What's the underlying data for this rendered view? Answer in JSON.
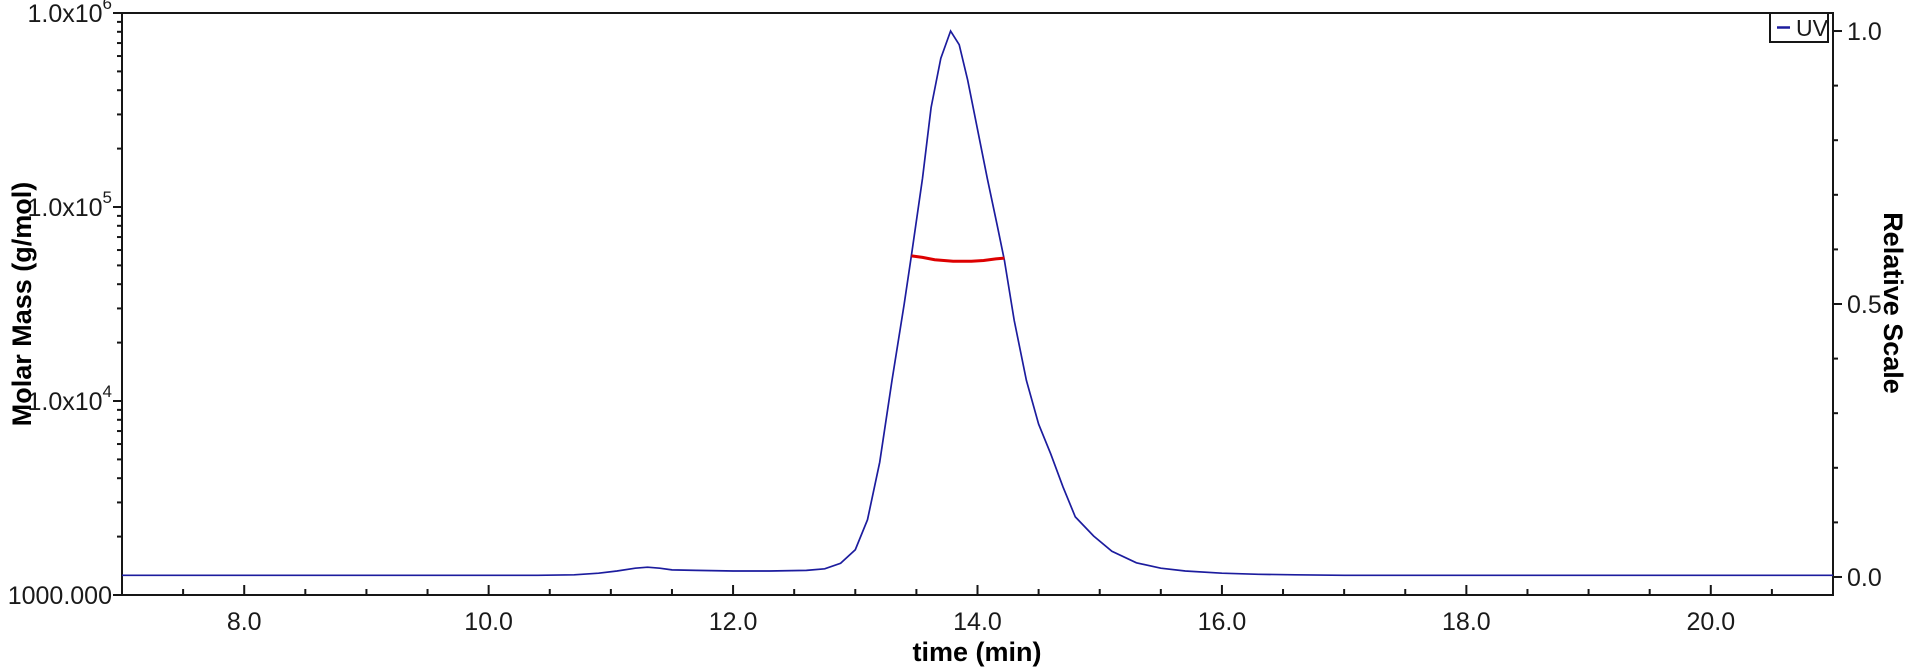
{
  "chart_data": {
    "type": "line",
    "title": "",
    "xlabel": "time (min)",
    "ylabel_left": "Molar Mass (g/mol)",
    "ylabel_right": "Relative Scale",
    "grid": false,
    "x_range": [
      7.0,
      21.0
    ],
    "x_major_ticks": [
      8,
      10,
      12,
      14,
      16,
      18,
      20
    ],
    "x_major_tick_labels": [
      "8.0",
      "10.0",
      "12.0",
      "14.0",
      "16.0",
      "18.0",
      "20.0"
    ],
    "x_minor_tick_step": 0.5,
    "left_axis": {
      "scale": "log",
      "range": [
        1000,
        1000000
      ],
      "tick_labels": [
        {
          "base": "1000.000",
          "sup": "",
          "value": 1000
        },
        {
          "base": "1.0x10",
          "sup": "4",
          "value": 10000
        },
        {
          "base": "1.0x10",
          "sup": "5",
          "value": 100000
        },
        {
          "base": "1.0x10",
          "sup": "6",
          "value": 1000000
        }
      ]
    },
    "right_axis": {
      "scale": "linear",
      "range": [
        -0.033,
        1.033
      ],
      "major_ticks": [
        0.0,
        0.5,
        1.0
      ],
      "major_tick_labels": [
        "0.0",
        "0.5",
        "1.0"
      ],
      "minor_tick_step": 0.1
    },
    "legend": {
      "label": "UV",
      "position": "top-right",
      "line_color": "#1c1c9e"
    },
    "series": [
      {
        "name": "UV",
        "axis": "right",
        "color": "#1c1c9e",
        "points": [
          [
            7.0,
            0.003
          ],
          [
            7.5,
            0.003
          ],
          [
            8.0,
            0.003
          ],
          [
            8.5,
            0.003
          ],
          [
            9.0,
            0.003
          ],
          [
            9.5,
            0.003
          ],
          [
            10.0,
            0.003
          ],
          [
            10.4,
            0.003
          ],
          [
            10.7,
            0.004
          ],
          [
            10.9,
            0.007
          ],
          [
            11.05,
            0.011
          ],
          [
            11.2,
            0.016
          ],
          [
            11.3,
            0.018
          ],
          [
            11.4,
            0.016
          ],
          [
            11.5,
            0.013
          ],
          [
            11.7,
            0.012
          ],
          [
            12.0,
            0.011
          ],
          [
            12.3,
            0.011
          ],
          [
            12.6,
            0.012
          ],
          [
            12.75,
            0.015
          ],
          [
            12.88,
            0.025
          ],
          [
            13.0,
            0.05
          ],
          [
            13.1,
            0.105
          ],
          [
            13.2,
            0.21
          ],
          [
            13.3,
            0.36
          ],
          [
            13.4,
            0.5
          ],
          [
            13.46,
            0.59
          ],
          [
            13.55,
            0.73
          ],
          [
            13.62,
            0.86
          ],
          [
            13.7,
            0.95
          ],
          [
            13.78,
            1.0
          ],
          [
            13.85,
            0.975
          ],
          [
            13.92,
            0.91
          ],
          [
            14.0,
            0.82
          ],
          [
            14.08,
            0.73
          ],
          [
            14.16,
            0.645
          ],
          [
            14.22,
            0.58
          ],
          [
            14.3,
            0.47
          ],
          [
            14.4,
            0.36
          ],
          [
            14.5,
            0.28
          ],
          [
            14.6,
            0.225
          ],
          [
            14.7,
            0.165
          ],
          [
            14.8,
            0.11
          ],
          [
            14.95,
            0.075
          ],
          [
            15.1,
            0.047
          ],
          [
            15.3,
            0.026
          ],
          [
            15.5,
            0.016
          ],
          [
            15.7,
            0.011
          ],
          [
            16.0,
            0.007
          ],
          [
            16.3,
            0.005
          ],
          [
            16.6,
            0.004
          ],
          [
            17.0,
            0.003
          ],
          [
            17.5,
            0.003
          ],
          [
            18.0,
            0.003
          ],
          [
            18.5,
            0.003
          ],
          [
            19.0,
            0.003
          ],
          [
            19.5,
            0.003
          ],
          [
            20.0,
            0.003
          ],
          [
            20.5,
            0.003
          ],
          [
            21.0,
            0.003
          ]
        ]
      },
      {
        "name": "Molar Mass",
        "axis": "left",
        "color": "#dd0000",
        "points": [
          [
            13.46,
            56000
          ],
          [
            13.55,
            55000
          ],
          [
            13.65,
            53500
          ],
          [
            13.8,
            52500
          ],
          [
            13.95,
            52500
          ],
          [
            14.05,
            53000
          ],
          [
            14.15,
            54000
          ],
          [
            14.22,
            54500
          ]
        ]
      }
    ]
  }
}
